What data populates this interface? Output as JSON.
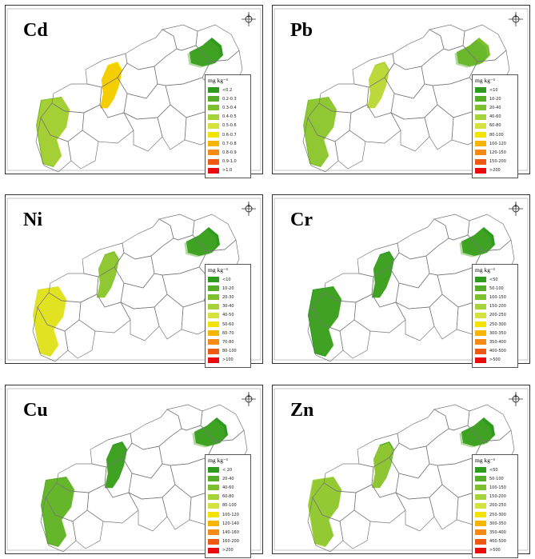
{
  "legend_unit": "mg kg⁻¹",
  "panels": [
    {
      "metal": "Cd",
      "legend": [
        {
          "label": "<0.2",
          "color": "#2e9a1e"
        },
        {
          "label": "0.2-0.3",
          "color": "#55ad28"
        },
        {
          "label": "0.3-0.4",
          "color": "#7cc02e"
        },
        {
          "label": "0.4-0.5",
          "color": "#a6d23a"
        },
        {
          "label": "0.5-0.6",
          "color": "#d4e23e"
        },
        {
          "label": "0.6-0.7",
          "color": "#f2e400"
        },
        {
          "label": "0.7-0.8",
          "color": "#f7b400"
        },
        {
          "label": "0.8-0.9",
          "color": "#f58a14"
        },
        {
          "label": "0.9-1.0",
          "color": "#ee5a12"
        },
        {
          "label": ">1.0",
          "color": "#e80c0c"
        }
      ]
    },
    {
      "metal": "Pb",
      "legend": [
        {
          "label": "<10",
          "color": "#2e9a1e"
        },
        {
          "label": "10-20",
          "color": "#55ad28"
        },
        {
          "label": "20-40",
          "color": "#7cc02e"
        },
        {
          "label": "40-60",
          "color": "#a6d23a"
        },
        {
          "label": "60-80",
          "color": "#d4e23e"
        },
        {
          "label": "80-100",
          "color": "#f2e400"
        },
        {
          "label": "100-120",
          "color": "#f7b400"
        },
        {
          "label": "120-150",
          "color": "#f58a14"
        },
        {
          "label": "150-200",
          "color": "#ee5a12"
        },
        {
          "label": ">200",
          "color": "#e80c0c"
        }
      ]
    },
    {
      "metal": "Ni",
      "legend": [
        {
          "label": "<10",
          "color": "#2e9a1e"
        },
        {
          "label": "10-20",
          "color": "#55ad28"
        },
        {
          "label": "20-30",
          "color": "#7cc02e"
        },
        {
          "label": "30-40",
          "color": "#a6d23a"
        },
        {
          "label": "40-50",
          "color": "#d4e23e"
        },
        {
          "label": "50-60",
          "color": "#f2e400"
        },
        {
          "label": "60-70",
          "color": "#f7b400"
        },
        {
          "label": "70-80",
          "color": "#f58a14"
        },
        {
          "label": "80-100",
          "color": "#ee5a12"
        },
        {
          "label": ">100",
          "color": "#e80c0c"
        }
      ]
    },
    {
      "metal": "Cr",
      "legend": [
        {
          "label": "<50",
          "color": "#2e9a1e"
        },
        {
          "label": "50-100",
          "color": "#55ad28"
        },
        {
          "label": "100-150",
          "color": "#7cc02e"
        },
        {
          "label": "150-200",
          "color": "#a6d23a"
        },
        {
          "label": "200-250",
          "color": "#d4e23e"
        },
        {
          "label": "250-300",
          "color": "#f2e400"
        },
        {
          "label": "300-350",
          "color": "#f7b400"
        },
        {
          "label": "350-400",
          "color": "#f58a14"
        },
        {
          "label": "400-500",
          "color": "#ee5a12"
        },
        {
          "label": ">500",
          "color": "#e80c0c"
        }
      ]
    },
    {
      "metal": "Cu",
      "legend": [
        {
          "label": "< 20",
          "color": "#2e9a1e"
        },
        {
          "label": "20-40",
          "color": "#55ad28"
        },
        {
          "label": "40-60",
          "color": "#7cc02e"
        },
        {
          "label": "60-80",
          "color": "#a6d23a"
        },
        {
          "label": "80-100",
          "color": "#d4e23e"
        },
        {
          "label": "100-120",
          "color": "#f2e400"
        },
        {
          "label": "120-140",
          "color": "#f7b400"
        },
        {
          "label": "140-160",
          "color": "#f58a14"
        },
        {
          "label": "160-200",
          "color": "#ee5a12"
        },
        {
          "label": ">200",
          "color": "#e80c0c"
        }
      ]
    },
    {
      "metal": "Zn",
      "legend": [
        {
          "label": "<50",
          "color": "#2e9a1e"
        },
        {
          "label": "50-100",
          "color": "#55ad28"
        },
        {
          "label": "100-150",
          "color": "#7cc02e"
        },
        {
          "label": "150-200",
          "color": "#a6d23a"
        },
        {
          "label": "200-250",
          "color": "#d4e23e"
        },
        {
          "label": "250-300",
          "color": "#f2e400"
        },
        {
          "label": "300-350",
          "color": "#f7b400"
        },
        {
          "label": "350-400",
          "color": "#f58a14"
        },
        {
          "label": "400-500",
          "color": "#ee5a12"
        },
        {
          "label": ">500",
          "color": "#e80c0c"
        }
      ]
    }
  ]
}
